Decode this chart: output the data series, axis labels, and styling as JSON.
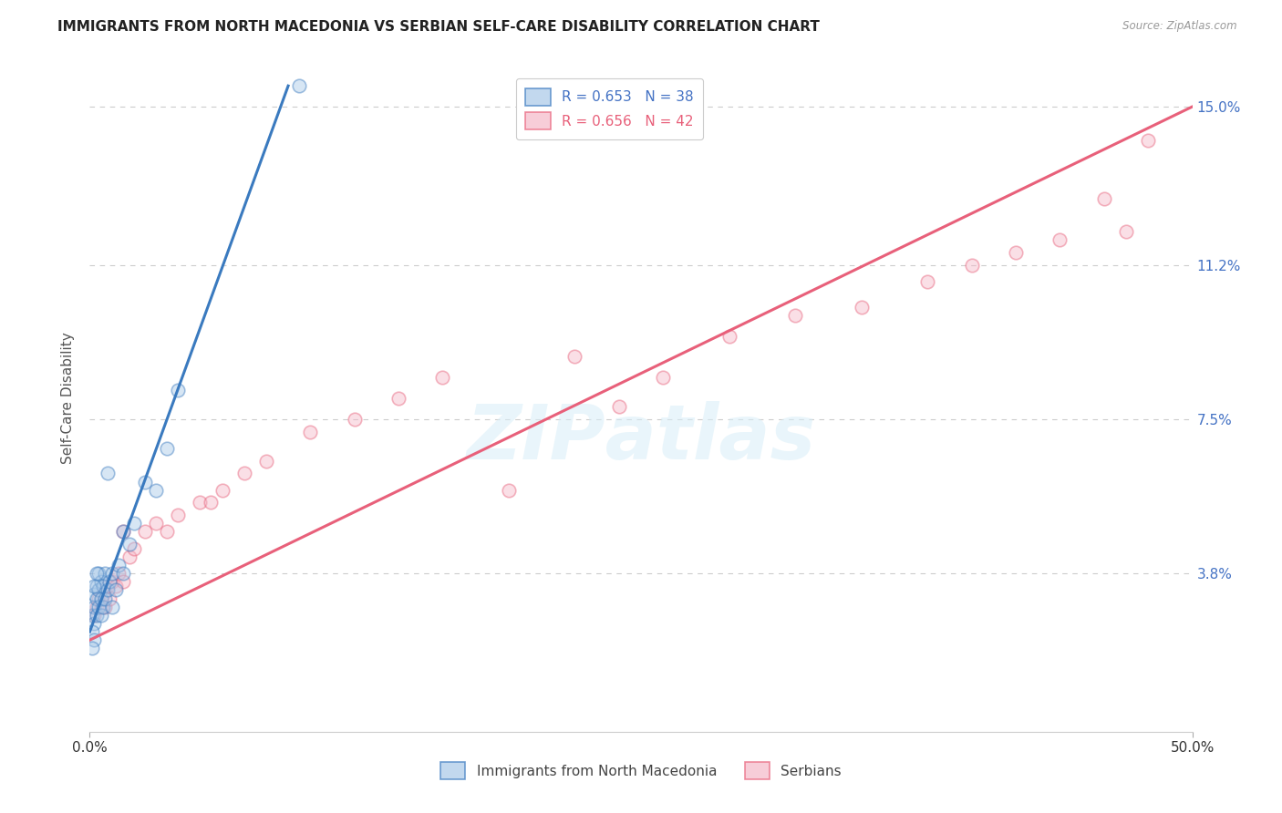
{
  "title": "IMMIGRANTS FROM NORTH MACEDONIA VS SERBIAN SELF-CARE DISABILITY CORRELATION CHART",
  "source": "Source: ZipAtlas.com",
  "ylabel": "Self-Care Disability",
  "xlim": [
    0.0,
    0.5
  ],
  "ylim": [
    0.0,
    0.16
  ],
  "yticks": [
    0.038,
    0.075,
    0.112,
    0.15
  ],
  "ytick_labels": [
    "3.8%",
    "7.5%",
    "11.2%",
    "15.0%"
  ],
  "xticks": [
    0.0,
    0.5
  ],
  "xtick_labels": [
    "0.0%",
    "50.0%"
  ],
  "legend_blue_R": "R = 0.653",
  "legend_blue_N": "N = 38",
  "legend_pink_R": "R = 0.656",
  "legend_pink_N": "N = 42",
  "legend_blue_label": "Immigrants from North Macedonia",
  "legend_pink_label": "Serbians",
  "blue_color": "#a8c8e8",
  "pink_color": "#f4b8c8",
  "trend_blue_color": "#3a7abf",
  "trend_pink_color": "#e8607a",
  "background_color": "#ffffff",
  "blue_scatter": [
    [
      0.001,
      0.028
    ],
    [
      0.002,
      0.026
    ],
    [
      0.002,
      0.03
    ],
    [
      0.002,
      0.033
    ],
    [
      0.003,
      0.028
    ],
    [
      0.003,
      0.032
    ],
    [
      0.003,
      0.035
    ],
    [
      0.004,
      0.03
    ],
    [
      0.004,
      0.034
    ],
    [
      0.004,
      0.038
    ],
    [
      0.005,
      0.028
    ],
    [
      0.005,
      0.032
    ],
    [
      0.005,
      0.036
    ],
    [
      0.006,
      0.03
    ],
    [
      0.006,
      0.035
    ],
    [
      0.007,
      0.032
    ],
    [
      0.007,
      0.038
    ],
    [
      0.008,
      0.034
    ],
    [
      0.009,
      0.036
    ],
    [
      0.01,
      0.038
    ],
    [
      0.01,
      0.03
    ],
    [
      0.012,
      0.034
    ],
    [
      0.013,
      0.04
    ],
    [
      0.015,
      0.038
    ],
    [
      0.015,
      0.048
    ],
    [
      0.018,
      0.045
    ],
    [
      0.02,
      0.05
    ],
    [
      0.025,
      0.06
    ],
    [
      0.03,
      0.058
    ],
    [
      0.035,
      0.068
    ],
    [
      0.001,
      0.024
    ],
    [
      0.002,
      0.022
    ],
    [
      0.001,
      0.02
    ],
    [
      0.002,
      0.035
    ],
    [
      0.003,
      0.038
    ],
    [
      0.008,
      0.062
    ],
    [
      0.04,
      0.082
    ],
    [
      0.095,
      0.155
    ]
  ],
  "pink_scatter": [
    [
      0.002,
      0.028
    ],
    [
      0.003,
      0.03
    ],
    [
      0.004,
      0.032
    ],
    [
      0.005,
      0.03
    ],
    [
      0.006,
      0.033
    ],
    [
      0.007,
      0.03
    ],
    [
      0.008,
      0.035
    ],
    [
      0.009,
      0.032
    ],
    [
      0.01,
      0.036
    ],
    [
      0.012,
      0.035
    ],
    [
      0.013,
      0.038
    ],
    [
      0.015,
      0.036
    ],
    [
      0.015,
      0.048
    ],
    [
      0.018,
      0.042
    ],
    [
      0.02,
      0.044
    ],
    [
      0.025,
      0.048
    ],
    [
      0.03,
      0.05
    ],
    [
      0.035,
      0.048
    ],
    [
      0.04,
      0.052
    ],
    [
      0.05,
      0.055
    ],
    [
      0.055,
      0.055
    ],
    [
      0.06,
      0.058
    ],
    [
      0.07,
      0.062
    ],
    [
      0.08,
      0.065
    ],
    [
      0.1,
      0.072
    ],
    [
      0.12,
      0.075
    ],
    [
      0.14,
      0.08
    ],
    [
      0.16,
      0.085
    ],
    [
      0.19,
      0.058
    ],
    [
      0.22,
      0.09
    ],
    [
      0.24,
      0.078
    ],
    [
      0.26,
      0.085
    ],
    [
      0.29,
      0.095
    ],
    [
      0.32,
      0.1
    ],
    [
      0.35,
      0.102
    ],
    [
      0.38,
      0.108
    ],
    [
      0.4,
      0.112
    ],
    [
      0.42,
      0.115
    ],
    [
      0.44,
      0.118
    ],
    [
      0.46,
      0.128
    ],
    [
      0.47,
      0.12
    ],
    [
      0.48,
      0.142
    ]
  ],
  "blue_trendline_x": [
    0.0,
    0.09
  ],
  "blue_trendline_y": [
    0.024,
    0.155
  ],
  "pink_trendline_x": [
    0.0,
    0.5
  ],
  "pink_trendline_y": [
    0.022,
    0.15
  ],
  "grid_color": "#cccccc",
  "title_fontsize": 11,
  "axis_label_fontsize": 9,
  "tick_fontsize": 9,
  "marker_size": 110,
  "marker_alpha": 0.45,
  "marker_linewidth": 1.2,
  "ytick_color": "#4472c4",
  "xtick_color": "#333333"
}
